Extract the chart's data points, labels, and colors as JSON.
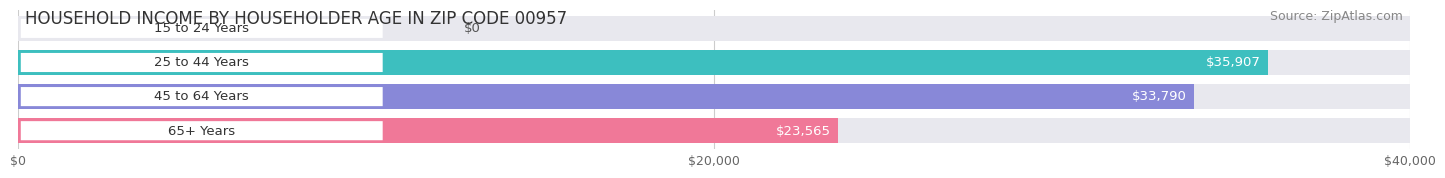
{
  "title": "HOUSEHOLD INCOME BY HOUSEHOLDER AGE IN ZIP CODE 00957",
  "source": "Source: ZipAtlas.com",
  "categories": [
    "15 to 24 Years",
    "25 to 44 Years",
    "45 to 64 Years",
    "65+ Years"
  ],
  "values": [
    0,
    35907,
    33790,
    23565
  ],
  "bar_colors": [
    "#c9a8d4",
    "#3dbfbf",
    "#8888d8",
    "#f07898"
  ],
  "bar_bg_color": "#e8e8ee",
  "value_labels": [
    "$0",
    "$35,907",
    "$33,790",
    "$23,565"
  ],
  "xlim": [
    0,
    40000
  ],
  "xticks": [
    0,
    20000,
    40000
  ],
  "xticklabels": [
    "$0",
    "$20,000",
    "$40,000"
  ],
  "background_color": "#ffffff",
  "bar_height": 0.72,
  "title_fontsize": 12,
  "source_fontsize": 9,
  "label_fontsize": 9.5,
  "tick_fontsize": 9,
  "value_label_color_inside": "#ffffff",
  "value_label_color_outside": "#555555",
  "label_box_color": "#ffffff",
  "grid_color": "#cccccc"
}
